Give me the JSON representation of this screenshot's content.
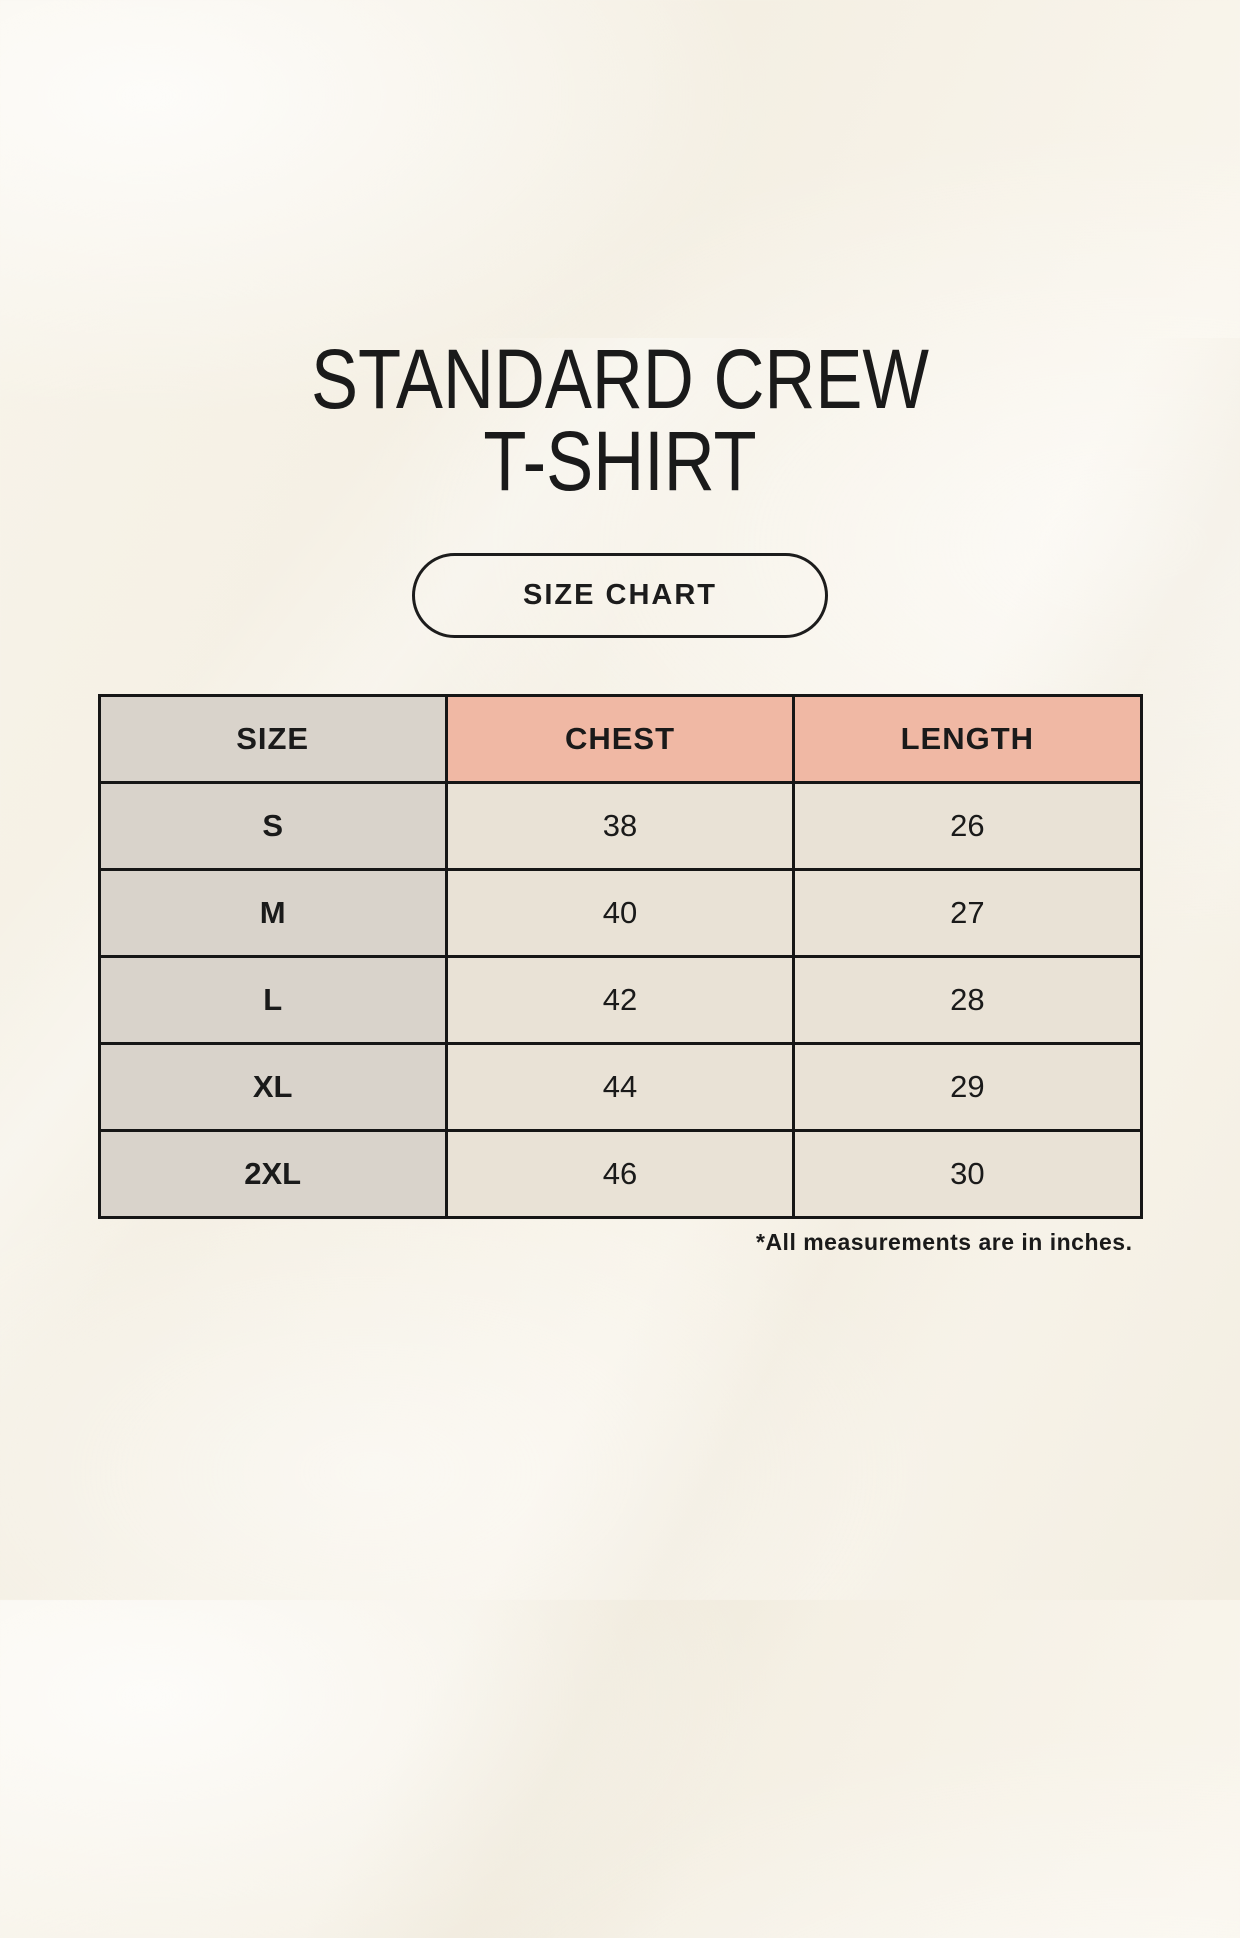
{
  "header": {
    "title_line1": "STANDARD CREW",
    "title_line2": "T-SHIRT",
    "button_label": "SIZE CHART"
  },
  "chart_data": {
    "type": "table",
    "title": "STANDARD CREW T-SHIRT",
    "columns": [
      "SIZE",
      "CHEST",
      "LENGTH"
    ],
    "rows": [
      [
        "S",
        38,
        26
      ],
      [
        "M",
        40,
        27
      ],
      [
        "L",
        42,
        28
      ],
      [
        "XL",
        44,
        29
      ],
      [
        "2XL",
        46,
        30
      ]
    ],
    "units": "inches",
    "footnote": "*All measurements are in inches."
  },
  "colors": {
    "background": "#f6f1e6",
    "header_size_bg": "#d9d3cb",
    "header_measure_bg": "#f0b8a4",
    "row_label_bg": "#d9d3cb",
    "row_value_bg": "#e9e2d6",
    "border": "#161616",
    "text": "#1a1a1a"
  }
}
